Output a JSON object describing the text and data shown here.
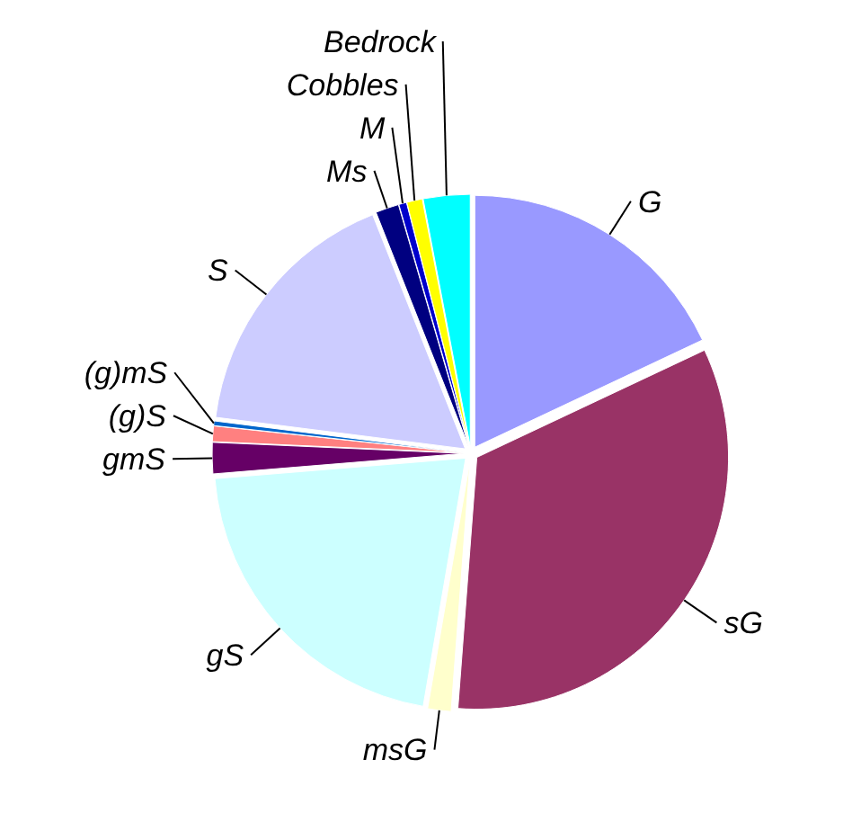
{
  "chart_data": {
    "type": "pie",
    "categories": [
      "G",
      "sG",
      "msG",
      "gS",
      "gmS",
      "(g)S",
      "(g)mS",
      "S",
      "Ms",
      "M",
      "Cobbles",
      "Bedrock"
    ],
    "values": [
      18,
      33.2,
      1.5,
      21,
      2,
      1,
      0.3,
      17,
      1.5,
      0.5,
      1,
      3
    ],
    "colors": [
      "#9999ff",
      "#993366",
      "#ffffcc",
      "#ccffff",
      "#660066",
      "#ff8080",
      "#0066cc",
      "#ccccff",
      "#000080",
      "#0000cc",
      "#ffff00",
      "#00ffff"
    ]
  }
}
